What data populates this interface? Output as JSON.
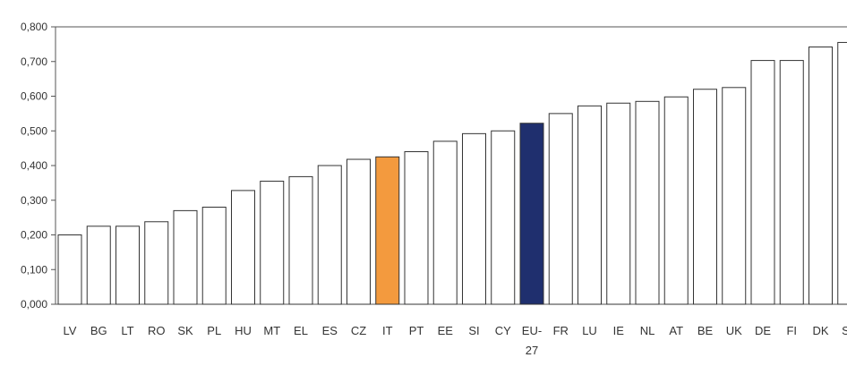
{
  "chart_data": {
    "type": "bar",
    "title": "",
    "xlabel": "",
    "ylabel": "",
    "ylim": [
      0,
      0.8
    ],
    "yticks": [
      "0,000",
      "0,100",
      "0,200",
      "0,300",
      "0,400",
      "0,500",
      "0,600",
      "0,700",
      "0,800"
    ],
    "grid": false,
    "legend": "none",
    "categories": [
      "LV",
      "BG",
      "LT",
      "RO",
      "SK",
      "PL",
      "HU",
      "MT",
      "EL",
      "ES",
      "CZ",
      "IT",
      "PT",
      "EE",
      "SI",
      "CY",
      "EU-27",
      "FR",
      "LU",
      "IE",
      "NL",
      "AT",
      "BE",
      "UK",
      "DE",
      "FI",
      "DK",
      "SE"
    ],
    "category_display": [
      [
        "LV"
      ],
      [
        "BG"
      ],
      [
        "LT"
      ],
      [
        "RO"
      ],
      [
        "SK"
      ],
      [
        "PL"
      ],
      [
        "HU"
      ],
      [
        "MT"
      ],
      [
        "EL"
      ],
      [
        "ES"
      ],
      [
        "CZ"
      ],
      [
        "IT"
      ],
      [
        "PT"
      ],
      [
        "EE"
      ],
      [
        "SI"
      ],
      [
        "CY"
      ],
      [
        "EU-",
        "27"
      ],
      [
        "FR"
      ],
      [
        "LU"
      ],
      [
        "IE"
      ],
      [
        "NL"
      ],
      [
        "AT"
      ],
      [
        "BE"
      ],
      [
        "UK"
      ],
      [
        "DE"
      ],
      [
        "FI"
      ],
      [
        "DK"
      ],
      [
        "SE"
      ]
    ],
    "values": [
      0.2,
      0.225,
      0.225,
      0.238,
      0.27,
      0.28,
      0.328,
      0.355,
      0.368,
      0.4,
      0.418,
      0.425,
      0.44,
      0.47,
      0.492,
      0.5,
      0.522,
      0.55,
      0.572,
      0.58,
      0.585,
      0.598,
      0.62,
      0.625,
      0.703,
      0.703,
      0.742,
      0.755
    ],
    "highlight": {
      "IT": "#f39a3e",
      "EU-27": "#1f2f6e"
    },
    "default_bar_color": "#ffffff"
  }
}
